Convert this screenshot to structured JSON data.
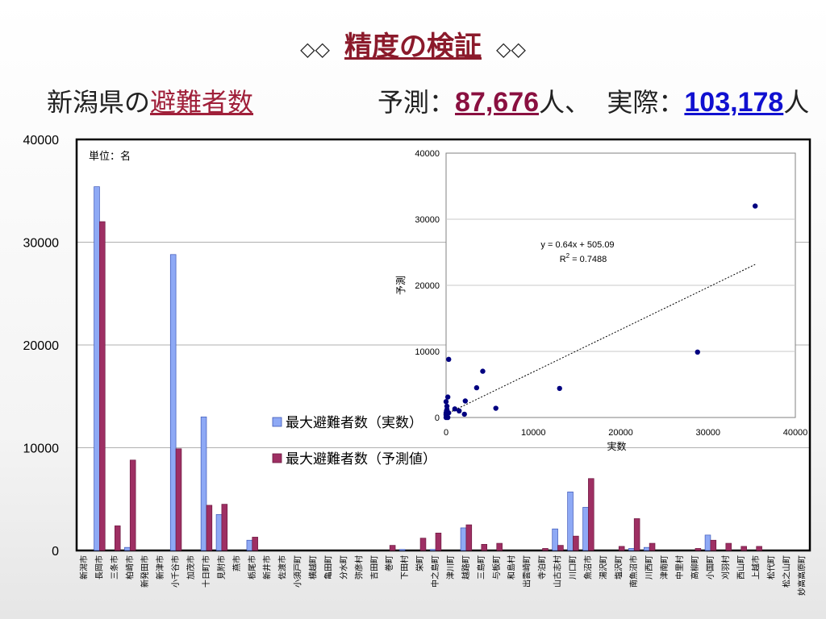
{
  "title": {
    "deco_left": "◇◇",
    "text": "精度の検証",
    "deco_right": "◇◇"
  },
  "subtitle": {
    "left_prefix": "新潟県の",
    "left_highlight": "避難者数",
    "pred_label": "予測：",
    "pred_value": "87,676",
    "pred_unit": "人、",
    "actual_label": "実際：",
    "actual_value": "103,178",
    "actual_unit": "人"
  },
  "chart_data": [
    {
      "type": "bar",
      "unit_note": "単位：名",
      "ylim": [
        0,
        40000
      ],
      "yticks": [
        0,
        10000,
        20000,
        30000,
        40000
      ],
      "grid": true,
      "legend_position": "center",
      "colors": {
        "actual_fill": "#8ea9f5",
        "actual_stroke": "#3c56b8",
        "pred_fill": "#9e2f63",
        "pred_stroke": "#6d1840"
      },
      "categories": [
        "新潟市",
        "長岡市",
        "三条市",
        "柏崎市",
        "新発田市",
        "新津市",
        "小千谷市",
        "加茂市",
        "十日町市",
        "見附市",
        "燕市",
        "栃尾市",
        "新井市",
        "佐渡市",
        "小須戸町",
        "横越町",
        "亀田町",
        "分水町",
        "弥彦村",
        "吉田町",
        "巻町",
        "下田村",
        "栄町",
        "中之島町",
        "津川町",
        "越路町",
        "三島町",
        "与板町",
        "和島村",
        "出雲崎町",
        "寺泊町",
        "山古志村",
        "川口町",
        "魚沼市",
        "湯沢町",
        "塩沢町",
        "南魚沼市",
        "川西町",
        "津南町",
        "中里村",
        "高柳町",
        "小国町",
        "刈羽村",
        "西山町",
        "上越市",
        "松代町",
        "松之山町",
        "妙高高原町"
      ],
      "series": [
        {
          "name": "最大避難者数（実数）",
          "values": [
            0,
            35400,
            0,
            300,
            0,
            0,
            28800,
            0,
            13000,
            3500,
            0,
            1000,
            0,
            0,
            0,
            0,
            0,
            0,
            0,
            0,
            0,
            100,
            0,
            100,
            0,
            2200,
            0,
            0,
            0,
            0,
            0,
            2100,
            5700,
            4200,
            0,
            0,
            200,
            300,
            0,
            0,
            0,
            1500,
            0,
            0,
            0,
            0,
            0,
            0
          ]
        },
        {
          "name": "最大避難者数（予測値）",
          "values": [
            0,
            32000,
            2400,
            8800,
            0,
            0,
            9900,
            0,
            4400,
            4500,
            0,
            1300,
            0,
            0,
            0,
            0,
            0,
            0,
            0,
            0,
            500,
            0,
            1200,
            1700,
            0,
            2500,
            600,
            700,
            0,
            0,
            200,
            500,
            1400,
            7000,
            0,
            400,
            3100,
            700,
            0,
            0,
            200,
            1000,
            700,
            400,
            400,
            0,
            0,
            0
          ]
        }
      ]
    },
    {
      "type": "scatter",
      "xlabel": "実数",
      "ylabel": "予測",
      "xlim": [
        0,
        40000
      ],
      "ylim": [
        0,
        40000
      ],
      "xticks": [
        0,
        10000,
        20000,
        30000,
        40000
      ],
      "yticks": [
        0,
        10000,
        20000,
        30000,
        40000
      ],
      "grid": true,
      "point_color": "#000080",
      "trendline": {
        "equation": "y = 0.64x + 505.09",
        "r2_label": "R",
        "r2_sup": "2",
        "r2_value": " = 0.7488",
        "slope": 0.64,
        "intercept": 505.09
      },
      "points": [
        [
          35400,
          32000
        ],
        [
          28800,
          9900
        ],
        [
          13000,
          4400
        ],
        [
          4200,
          7000
        ],
        [
          3500,
          4500
        ],
        [
          5700,
          1400
        ],
        [
          2200,
          2500
        ],
        [
          2100,
          500
        ],
        [
          1500,
          1000
        ],
        [
          1000,
          1300
        ],
        [
          300,
          8800
        ],
        [
          0,
          2400
        ],
        [
          100,
          1700
        ],
        [
          200,
          3100
        ],
        [
          100,
          1200
        ],
        [
          300,
          700
        ],
        [
          0,
          700
        ],
        [
          0,
          400
        ],
        [
          0,
          500
        ],
        [
          0,
          0
        ],
        [
          200,
          0
        ],
        [
          50,
          1000
        ],
        [
          100,
          200
        ]
      ]
    }
  ]
}
